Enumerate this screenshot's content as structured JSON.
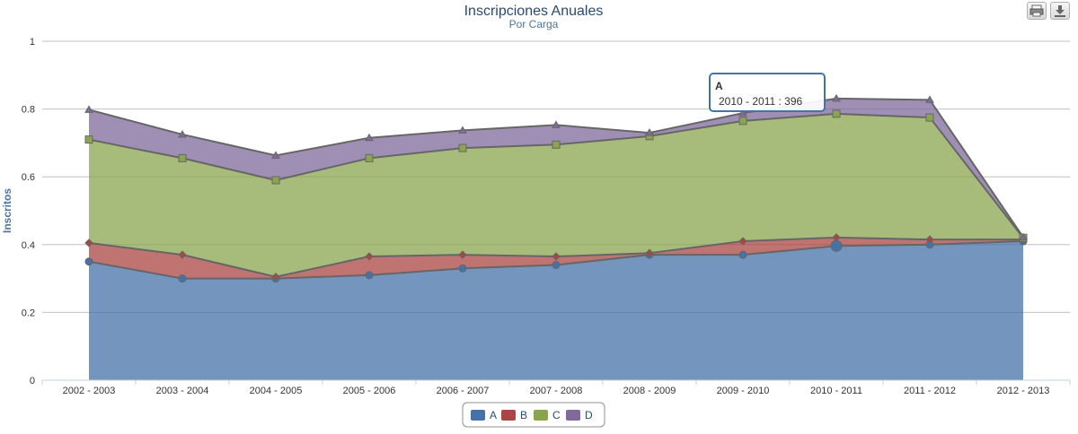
{
  "chart_data": {
    "type": "area",
    "stacking": "normal",
    "title": "Inscripciones Anuales",
    "subtitle": "Por Carga",
    "ylabel": "Inscritos",
    "xlabel": "",
    "ylim": [
      0,
      1
    ],
    "yticks": [
      "0",
      "0.2",
      "0.4",
      "0.6",
      "0.8",
      "1"
    ],
    "grid": true,
    "legend_position": "bottom-center",
    "categories": [
      "2002 - 2003",
      "2003 - 2004",
      "2004 - 2005",
      "2005 - 2006",
      "2006 - 2007",
      "2007 - 2008",
      "2008 - 2009",
      "2009 - 2010",
      "2010 - 2011",
      "2011 - 2012",
      "2012 - 2013"
    ],
    "series": [
      {
        "name": "A",
        "color": "#4572a7",
        "marker": "circle",
        "values": [
          0.35,
          0.3,
          0.3,
          0.31,
          0.33,
          0.34,
          0.37,
          0.37,
          0.396,
          0.4,
          0.41
        ]
      },
      {
        "name": "B",
        "color": "#aa4643",
        "marker": "diamond",
        "values": [
          0.055,
          0.07,
          0.005,
          0.055,
          0.04,
          0.025,
          0.005,
          0.04,
          0.025,
          0.015,
          0.005
        ]
      },
      {
        "name": "C",
        "color": "#89a54e",
        "marker": "square",
        "values": [
          0.305,
          0.285,
          0.285,
          0.29,
          0.315,
          0.33,
          0.345,
          0.355,
          0.365,
          0.36,
          0.005
        ]
      },
      {
        "name": "D",
        "color": "#80699b",
        "marker": "triangle",
        "values": [
          0.088,
          0.07,
          0.073,
          0.06,
          0.052,
          0.058,
          0.01,
          0.023,
          0.045,
          0.052,
          0.002
        ]
      }
    ],
    "tooltip": {
      "series": "A",
      "text": "2010 - 2011 : 396",
      "category": "2010 - 2011"
    }
  },
  "toolbar": {
    "print_icon": "print-icon",
    "download_icon": "download-icon"
  }
}
